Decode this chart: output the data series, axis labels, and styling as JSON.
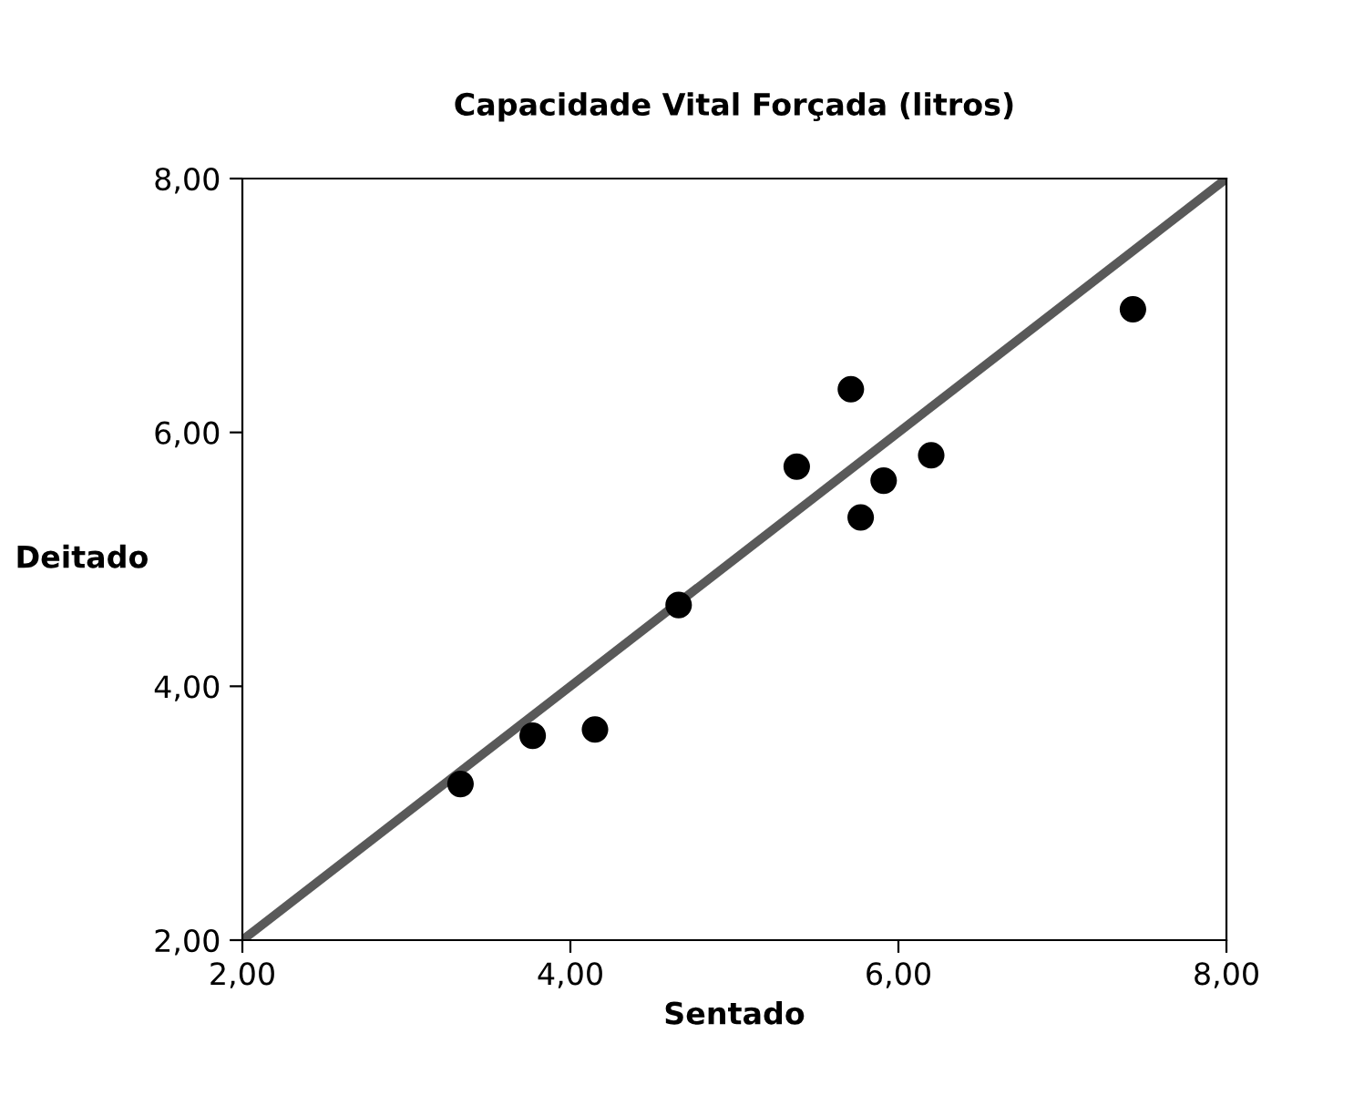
{
  "chart_data": {
    "type": "scatter",
    "title": "Capacidade Vital Forçada (litros)",
    "xlabel": "Sentado",
    "ylabel": "Deitado",
    "series": [
      {
        "color": "#000000",
        "marker": "circle",
        "x": [
          3.33,
          3.77,
          4.15,
          4.66,
          5.38,
          5.71,
          5.77,
          5.91,
          6.2,
          7.43
        ],
        "values": [
          3.23,
          3.61,
          3.66,
          4.64,
          5.73,
          6.34,
          5.33,
          5.62,
          5.82,
          6.97
        ]
      },
      {
        "type": "line",
        "color": "#595959",
        "marker": "none",
        "line_style": "solid",
        "x": [
          2,
          8
        ],
        "values": [
          2,
          8
        ]
      }
    ],
    "xlim": [
      2,
      8
    ],
    "ylim": [
      2,
      8
    ],
    "xticks": [
      {
        "value": 2,
        "label": "2,00"
      },
      {
        "value": 4,
        "label": "4,00"
      },
      {
        "value": 6,
        "label": "6,00"
      },
      {
        "value": 8,
        "label": "8,00"
      }
    ],
    "yticks": [
      {
        "value": 2,
        "label": "2,00"
      },
      {
        "value": 4,
        "label": "4,00"
      },
      {
        "value": 6,
        "label": "6,00"
      },
      {
        "value": 8,
        "label": "8,00"
      }
    ],
    "grid": false,
    "legend": false
  }
}
